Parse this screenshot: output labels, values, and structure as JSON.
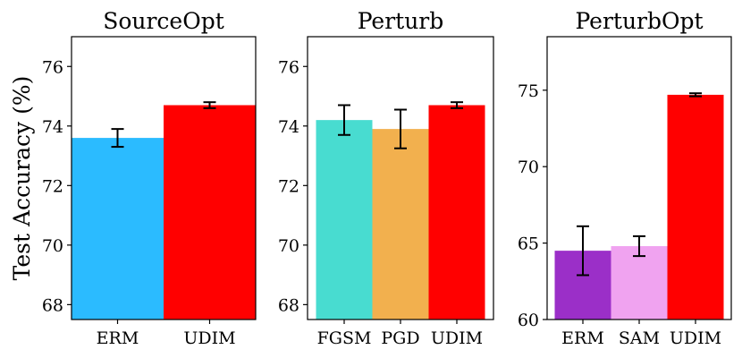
{
  "ylabel": "Test Accuracy (%)",
  "chart_data": [
    {
      "type": "bar",
      "title": "SourceOpt",
      "categories": [
        "ERM",
        "UDIM"
      ],
      "values": [
        73.6,
        74.7
      ],
      "errors": [
        0.3,
        0.1
      ],
      "colors": [
        "#2bbbff",
        "#ff0000"
      ],
      "ylim": [
        67.5,
        77
      ],
      "yticks": [
        68,
        70,
        72,
        74,
        76
      ]
    },
    {
      "type": "bar",
      "title": "Perturb",
      "categories": [
        "FGSM",
        "PGD",
        "UDIM"
      ],
      "values": [
        74.2,
        73.9,
        74.7
      ],
      "errors": [
        0.5,
        0.65,
        0.1
      ],
      "colors": [
        "#48dcd0",
        "#f2b04e",
        "#ff0000"
      ],
      "ylim": [
        67.5,
        77
      ],
      "yticks": [
        68,
        70,
        72,
        74,
        76
      ]
    },
    {
      "type": "bar",
      "title": "PerturbOpt",
      "categories": [
        "ERM",
        "SAM",
        "UDIM"
      ],
      "values": [
        64.5,
        64.8,
        74.7
      ],
      "errors": [
        1.6,
        0.65,
        0.1
      ],
      "colors": [
        "#9b2fc8",
        "#f0a3f0",
        "#ff0000"
      ],
      "ylim": [
        60,
        78.5
      ],
      "yticks": [
        60,
        65,
        70,
        75
      ]
    }
  ]
}
